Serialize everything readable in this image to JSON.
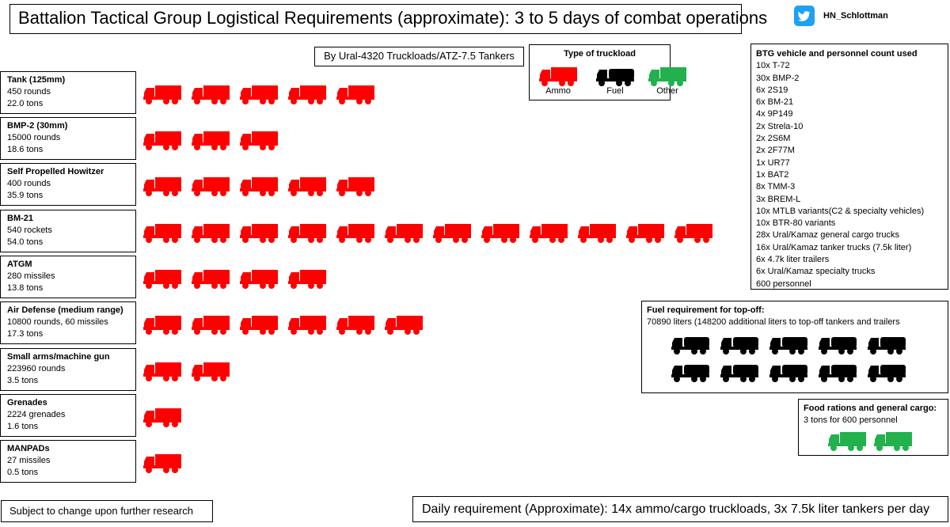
{
  "title": "Battalion Tactical Group Logistical Requirements (approximate): 3 to 5 days of combat operations",
  "subtitle": "By Ural-4320 Truckloads/ATZ-7.5 Tankers",
  "twitter": {
    "icon": "twitter-bird-icon",
    "handle": "HN_Schlottman",
    "color": "#1da1f2"
  },
  "legend": {
    "title": "Type of truckload",
    "items": [
      {
        "label": "Ammo",
        "color": "#ff0000"
      },
      {
        "label": "Fuel",
        "color": "#000000"
      },
      {
        "label": "Other",
        "color": "#22b14c"
      }
    ]
  },
  "categories": [
    {
      "name": "Tank (125mm)",
      "quantity": "450 rounds",
      "tons": "22.0 tons",
      "truckloads": 5
    },
    {
      "name": "BMP-2 (30mm)",
      "quantity": "15000 rounds",
      "tons": "18.6 tons",
      "truckloads": 3
    },
    {
      "name": "Self Propelled Howitzer",
      "quantity": "400 rounds",
      "tons": "35.9 tons",
      "truckloads": 5
    },
    {
      "name": "BM-21",
      "quantity": "540 rockets",
      "tons": "54.0 tons",
      "truckloads": 12
    },
    {
      "name": "ATGM",
      "quantity": "280 missiles",
      "tons": "13.8 tons",
      "truckloads": 4
    },
    {
      "name": "Air Defense (medium range)",
      "quantity": "10800 rounds, 60 missiles",
      "tons": "17.3 tons",
      "truckloads": 6
    },
    {
      "name": "Small arms/machine gun",
      "quantity": "223960 rounds",
      "tons": "3.5 tons",
      "truckloads": 2
    },
    {
      "name": "Grenades",
      "quantity": "2224 grenades",
      "tons": "1.6 tons",
      "truckloads": 1
    },
    {
      "name": "MANPADs",
      "quantity": "27 missiles",
      "tons": "0.5 tons",
      "truckloads": 1
    }
  ],
  "btg": {
    "title": "BTG vehicle and personnel count used",
    "items": [
      "10x T-72",
      "30x BMP-2",
      "6x 2S19",
      "6x BM-21",
      "4x 9P149",
      "2x Strela-10",
      "2x 2S6M",
      "2x 2F77M",
      "1x UR77",
      "1x BAT2",
      "8x TMM-3",
      "3x BREM-L",
      "10x MTLB variants(C2 & specialty vehicles)",
      "10x BTR-80 variants",
      "28x Ural/Kamaz general cargo trucks",
      "16x Ural/Kamaz tanker trucks (7.5k liter)",
      "6x 4.7k liter trailers",
      "6x Ural/Kamaz specialty trucks",
      "600 personnel"
    ]
  },
  "fuel": {
    "title": "Fuel requirement for top-off:",
    "text": "70890 liters (148200 additional liters to top-off tankers and trailers",
    "tankers": 10
  },
  "food": {
    "title": "Food rations and general cargo:",
    "text": "3 tons for 600 personnel",
    "truckloads": 2
  },
  "note": "Subject to change upon further research",
  "daily": "Daily requirement (Approximate): 14x ammo/cargo truckloads, 3x 7.5k liter tankers per day"
}
